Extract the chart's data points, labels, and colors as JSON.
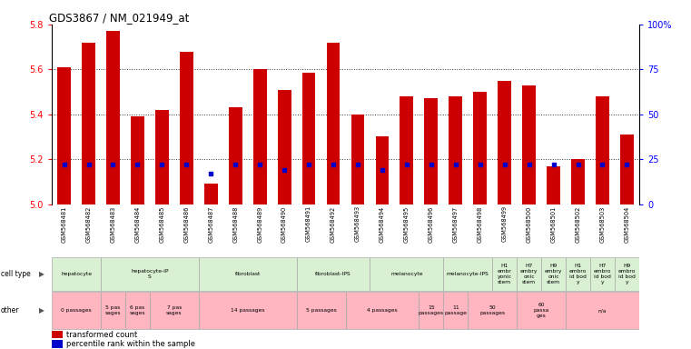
{
  "title": "GDS3867 / NM_021949_at",
  "samples": [
    "GSM568481",
    "GSM568482",
    "GSM568483",
    "GSM568484",
    "GSM568485",
    "GSM568486",
    "GSM568487",
    "GSM568488",
    "GSM568489",
    "GSM568490",
    "GSM568491",
    "GSM568492",
    "GSM568493",
    "GSM568494",
    "GSM568495",
    "GSM568496",
    "GSM568497",
    "GSM568498",
    "GSM568499",
    "GSM568500",
    "GSM568501",
    "GSM568502",
    "GSM568503",
    "GSM568504"
  ],
  "transformed_count": [
    5.61,
    5.72,
    5.77,
    5.39,
    5.42,
    5.68,
    5.09,
    5.43,
    5.6,
    5.51,
    5.585,
    5.72,
    5.4,
    5.3,
    5.48,
    5.47,
    5.48,
    5.5,
    5.55,
    5.53,
    5.17,
    5.2,
    5.48,
    5.31
  ],
  "percentile_rank_pct": [
    22,
    22,
    22,
    22,
    22,
    22,
    17,
    22,
    22,
    19,
    22,
    22,
    22,
    19,
    22,
    22,
    22,
    22,
    22,
    22,
    22,
    22,
    22,
    22
  ],
  "y_min": 5.0,
  "y_max": 5.8,
  "y_ticks": [
    5.0,
    5.2,
    5.4,
    5.6,
    5.8
  ],
  "y_right_ticks": [
    0,
    25,
    50,
    75,
    100
  ],
  "bar_color": "#cc0000",
  "dot_color": "#0000cc",
  "cell_groups": [
    {
      "label": "hepatocyte",
      "start": 0,
      "end": 2,
      "color": "#d9f0d3"
    },
    {
      "label": "hepatocyte-iP\nS",
      "start": 2,
      "end": 6,
      "color": "#d9f0d3"
    },
    {
      "label": "fibroblast",
      "start": 6,
      "end": 10,
      "color": "#d9f0d3"
    },
    {
      "label": "fibroblast-IPS",
      "start": 10,
      "end": 13,
      "color": "#d9f0d3"
    },
    {
      "label": "melanocyte",
      "start": 13,
      "end": 16,
      "color": "#d9f0d3"
    },
    {
      "label": "melanocyte-IPS",
      "start": 16,
      "end": 18,
      "color": "#d9f0d3"
    },
    {
      "label": "H1\nembr\nyonic\nstem",
      "start": 18,
      "end": 19,
      "color": "#d9f0d3"
    },
    {
      "label": "H7\nembry\nonic\nstem",
      "start": 19,
      "end": 20,
      "color": "#d9f0d3"
    },
    {
      "label": "H9\nembry\nonic\nstem",
      "start": 20,
      "end": 21,
      "color": "#d9f0d3"
    },
    {
      "label": "H1\nembro\nid bod\ny",
      "start": 21,
      "end": 22,
      "color": "#d9f0d3"
    },
    {
      "label": "H7\nembro\nid bod\ny",
      "start": 22,
      "end": 23,
      "color": "#d9f0d3"
    },
    {
      "label": "H9\nembro\nid bod\ny",
      "start": 23,
      "end": 24,
      "color": "#d9f0d3"
    }
  ],
  "other_groups": [
    {
      "label": "0 passages",
      "start": 0,
      "end": 2,
      "color": "#ffb6c1"
    },
    {
      "label": "5 pas\nsages",
      "start": 2,
      "end": 3,
      "color": "#ffb6c1"
    },
    {
      "label": "6 pas\nsages",
      "start": 3,
      "end": 4,
      "color": "#ffb6c1"
    },
    {
      "label": "7 pas\nsages",
      "start": 4,
      "end": 6,
      "color": "#ffb6c1"
    },
    {
      "label": "14 passages",
      "start": 6,
      "end": 10,
      "color": "#ffb6c1"
    },
    {
      "label": "5 passages",
      "start": 10,
      "end": 12,
      "color": "#ffb6c1"
    },
    {
      "label": "4 passages",
      "start": 12,
      "end": 15,
      "color": "#ffb6c1"
    },
    {
      "label": "15\npassages",
      "start": 15,
      "end": 16,
      "color": "#ffb6c1"
    },
    {
      "label": "11\npassage",
      "start": 16,
      "end": 17,
      "color": "#ffb6c1"
    },
    {
      "label": "50\npassages",
      "start": 17,
      "end": 19,
      "color": "#ffb6c1"
    },
    {
      "label": "60\npassa\nges",
      "start": 19,
      "end": 21,
      "color": "#ffb6c1"
    },
    {
      "label": "n/a",
      "start": 21,
      "end": 24,
      "color": "#ffb6c1"
    }
  ],
  "sample_label_bg": "#d0d0d0",
  "header_bg": "#e8e8e8"
}
